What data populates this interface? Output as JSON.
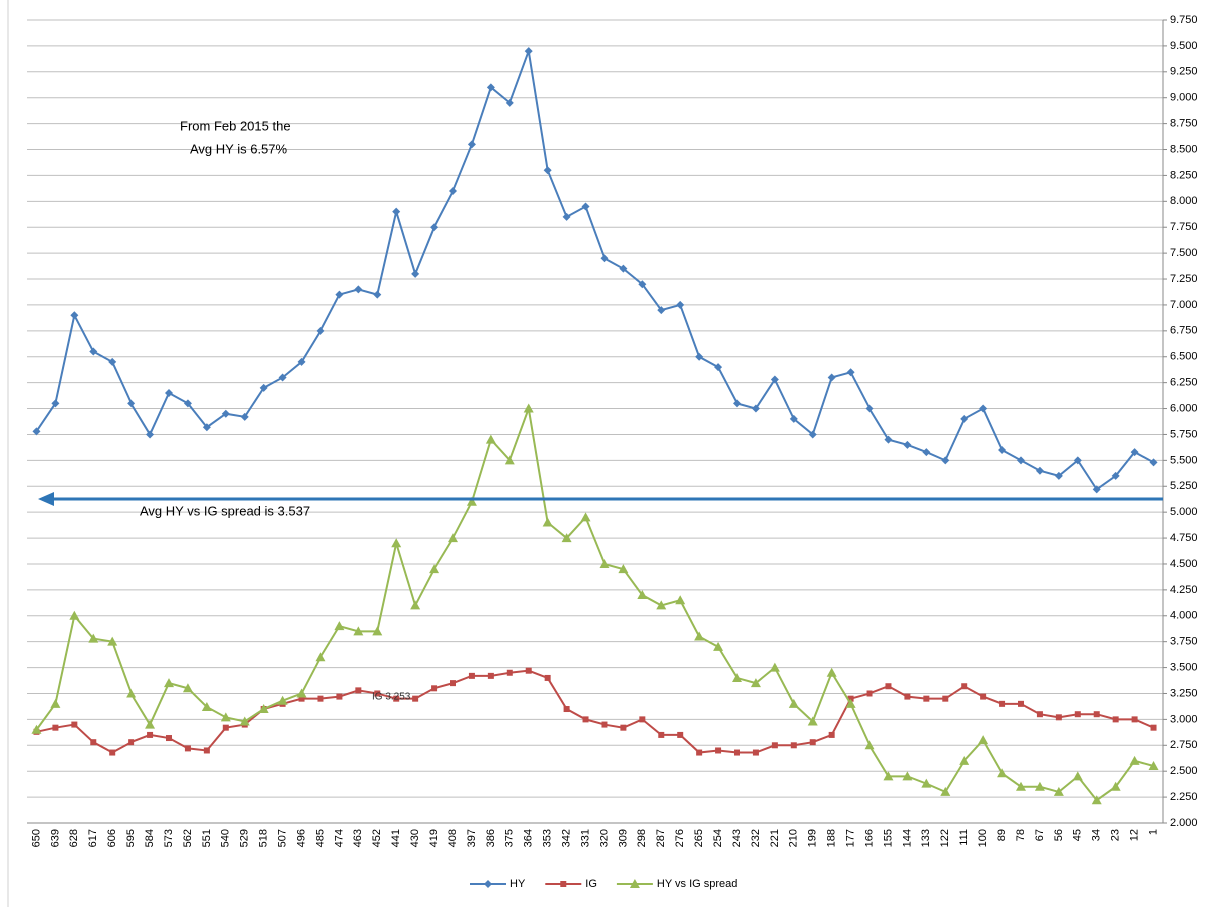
{
  "chart_data": {
    "type": "line",
    "annotations": [
      "From Feb 2015 the",
      "Avg HY is 6.57%",
      "Avg HY vs IG spread is 3.537",
      "IG 3.253"
    ],
    "categories": [
      "650",
      "639",
      "628",
      "617",
      "606",
      "595",
      "584",
      "573",
      "562",
      "551",
      "540",
      "529",
      "518",
      "507",
      "496",
      "485",
      "474",
      "463",
      "452",
      "441",
      "430",
      "419",
      "408",
      "397",
      "386",
      "375",
      "364",
      "353",
      "342",
      "331",
      "320",
      "309",
      "298",
      "287",
      "276",
      "265",
      "254",
      "243",
      "232",
      "221",
      "210",
      "199",
      "188",
      "177",
      "166",
      "155",
      "144",
      "133",
      "122",
      "111",
      "100",
      "89",
      "78",
      "67",
      "56",
      "45",
      "34",
      "23",
      "12",
      "1"
    ],
    "series": [
      {
        "name": "HY",
        "color": "#4a7ebb",
        "marker": "diamond",
        "values": [
          5.78,
          6.05,
          6.9,
          6.55,
          6.45,
          6.05,
          5.75,
          6.15,
          6.05,
          5.82,
          5.95,
          5.92,
          6.2,
          6.3,
          6.45,
          6.75,
          7.1,
          7.15,
          7.1,
          7.9,
          7.3,
          7.75,
          8.1,
          8.55,
          9.1,
          8.95,
          9.45,
          8.3,
          7.85,
          7.95,
          7.45,
          7.35,
          7.2,
          6.95,
          7.0,
          6.5,
          6.4,
          6.05,
          6.0,
          6.28,
          5.9,
          5.75,
          6.3,
          6.35,
          6.0,
          5.7,
          5.65,
          5.58,
          5.5,
          5.9,
          6.0,
          5.6,
          5.5,
          5.4,
          5.35,
          5.5,
          5.22,
          5.35,
          5.58,
          5.48
        ]
      },
      {
        "name": "IG",
        "color": "#be4b48",
        "marker": "square",
        "values": [
          2.88,
          2.92,
          2.95,
          2.78,
          2.68,
          2.78,
          2.85,
          2.82,
          2.72,
          2.7,
          2.92,
          2.95,
          3.1,
          3.15,
          3.2,
          3.2,
          3.22,
          3.28,
          3.25,
          3.2,
          3.2,
          3.3,
          3.35,
          3.42,
          3.42,
          3.45,
          3.47,
          3.4,
          3.1,
          3.0,
          2.95,
          2.92,
          3.0,
          2.85,
          2.85,
          2.68,
          2.7,
          2.68,
          2.68,
          2.75,
          2.75,
          2.78,
          2.85,
          3.2,
          3.25,
          3.32,
          3.22,
          3.2,
          3.2,
          3.32,
          3.22,
          3.15,
          3.15,
          3.05,
          3.02,
          3.05,
          3.05,
          3.0,
          3.0,
          2.92
        ]
      },
      {
        "name": "HY vs IG spread",
        "color": "#98b954",
        "marker": "triangle",
        "values": [
          2.9,
          3.15,
          4.0,
          3.78,
          3.75,
          3.25,
          2.95,
          3.35,
          3.3,
          3.12,
          3.02,
          2.98,
          3.1,
          3.18,
          3.25,
          3.6,
          3.9,
          3.85,
          3.85,
          4.7,
          4.1,
          4.45,
          4.75,
          5.1,
          5.7,
          5.5,
          6.0,
          4.9,
          4.75,
          4.95,
          4.5,
          4.45,
          4.2,
          4.1,
          4.15,
          3.8,
          3.7,
          3.4,
          3.35,
          3.5,
          3.15,
          2.98,
          3.45,
          3.15,
          2.75,
          2.45,
          2.45,
          2.38,
          2.3,
          2.6,
          2.8,
          2.48,
          2.35,
          2.35,
          2.3,
          2.45,
          2.22,
          2.35,
          2.6,
          2.55
        ]
      }
    ],
    "ylim": [
      2.0,
      9.75
    ],
    "yticks": [
      {
        "value": 2.0,
        "label": "2.000"
      },
      {
        "value": 2.25,
        "label": "2.250"
      },
      {
        "value": 2.5,
        "label": "2.500"
      },
      {
        "value": 2.75,
        "label": "2.750"
      },
      {
        "value": 3.0,
        "label": "3.000"
      },
      {
        "value": 3.25,
        "label": "3.250"
      },
      {
        "value": 3.5,
        "label": "3.500"
      },
      {
        "value": 3.75,
        "label": "3.750"
      },
      {
        "value": 4.0,
        "label": "4.000"
      },
      {
        "value": 4.25,
        "label": "4.250"
      },
      {
        "value": 4.5,
        "label": "4.500"
      },
      {
        "value": 4.75,
        "label": "4.750"
      },
      {
        "value": 5.0,
        "label": "5.000"
      },
      {
        "value": 5.25,
        "label": "5.250"
      },
      {
        "value": 5.5,
        "label": "5.500"
      },
      {
        "value": 5.75,
        "label": "5.750"
      },
      {
        "value": 6.0,
        "label": "6.000"
      },
      {
        "value": 6.25,
        "label": "6.250"
      },
      {
        "value": 6.5,
        "label": "6.500"
      },
      {
        "value": 6.75,
        "label": "6.750"
      },
      {
        "value": 7.0,
        "label": "7.000"
      },
      {
        "value": 7.25,
        "label": "7.250"
      },
      {
        "value": 7.5,
        "label": "7.500"
      },
      {
        "value": 7.75,
        "label": "7.750"
      },
      {
        "value": 8.0,
        "label": "8.000"
      },
      {
        "value": 8.25,
        "label": "8.250"
      },
      {
        "value": 8.5,
        "label": "8.500"
      },
      {
        "value": 8.75,
        "label": "8.750"
      },
      {
        "value": 9.0,
        "label": "9.000"
      },
      {
        "value": 9.25,
        "label": "9.250"
      },
      {
        "value": 9.5,
        "label": "9.500"
      },
      {
        "value": 9.75,
        "label": "9.750"
      }
    ],
    "grid": true,
    "legend": "bottom"
  }
}
